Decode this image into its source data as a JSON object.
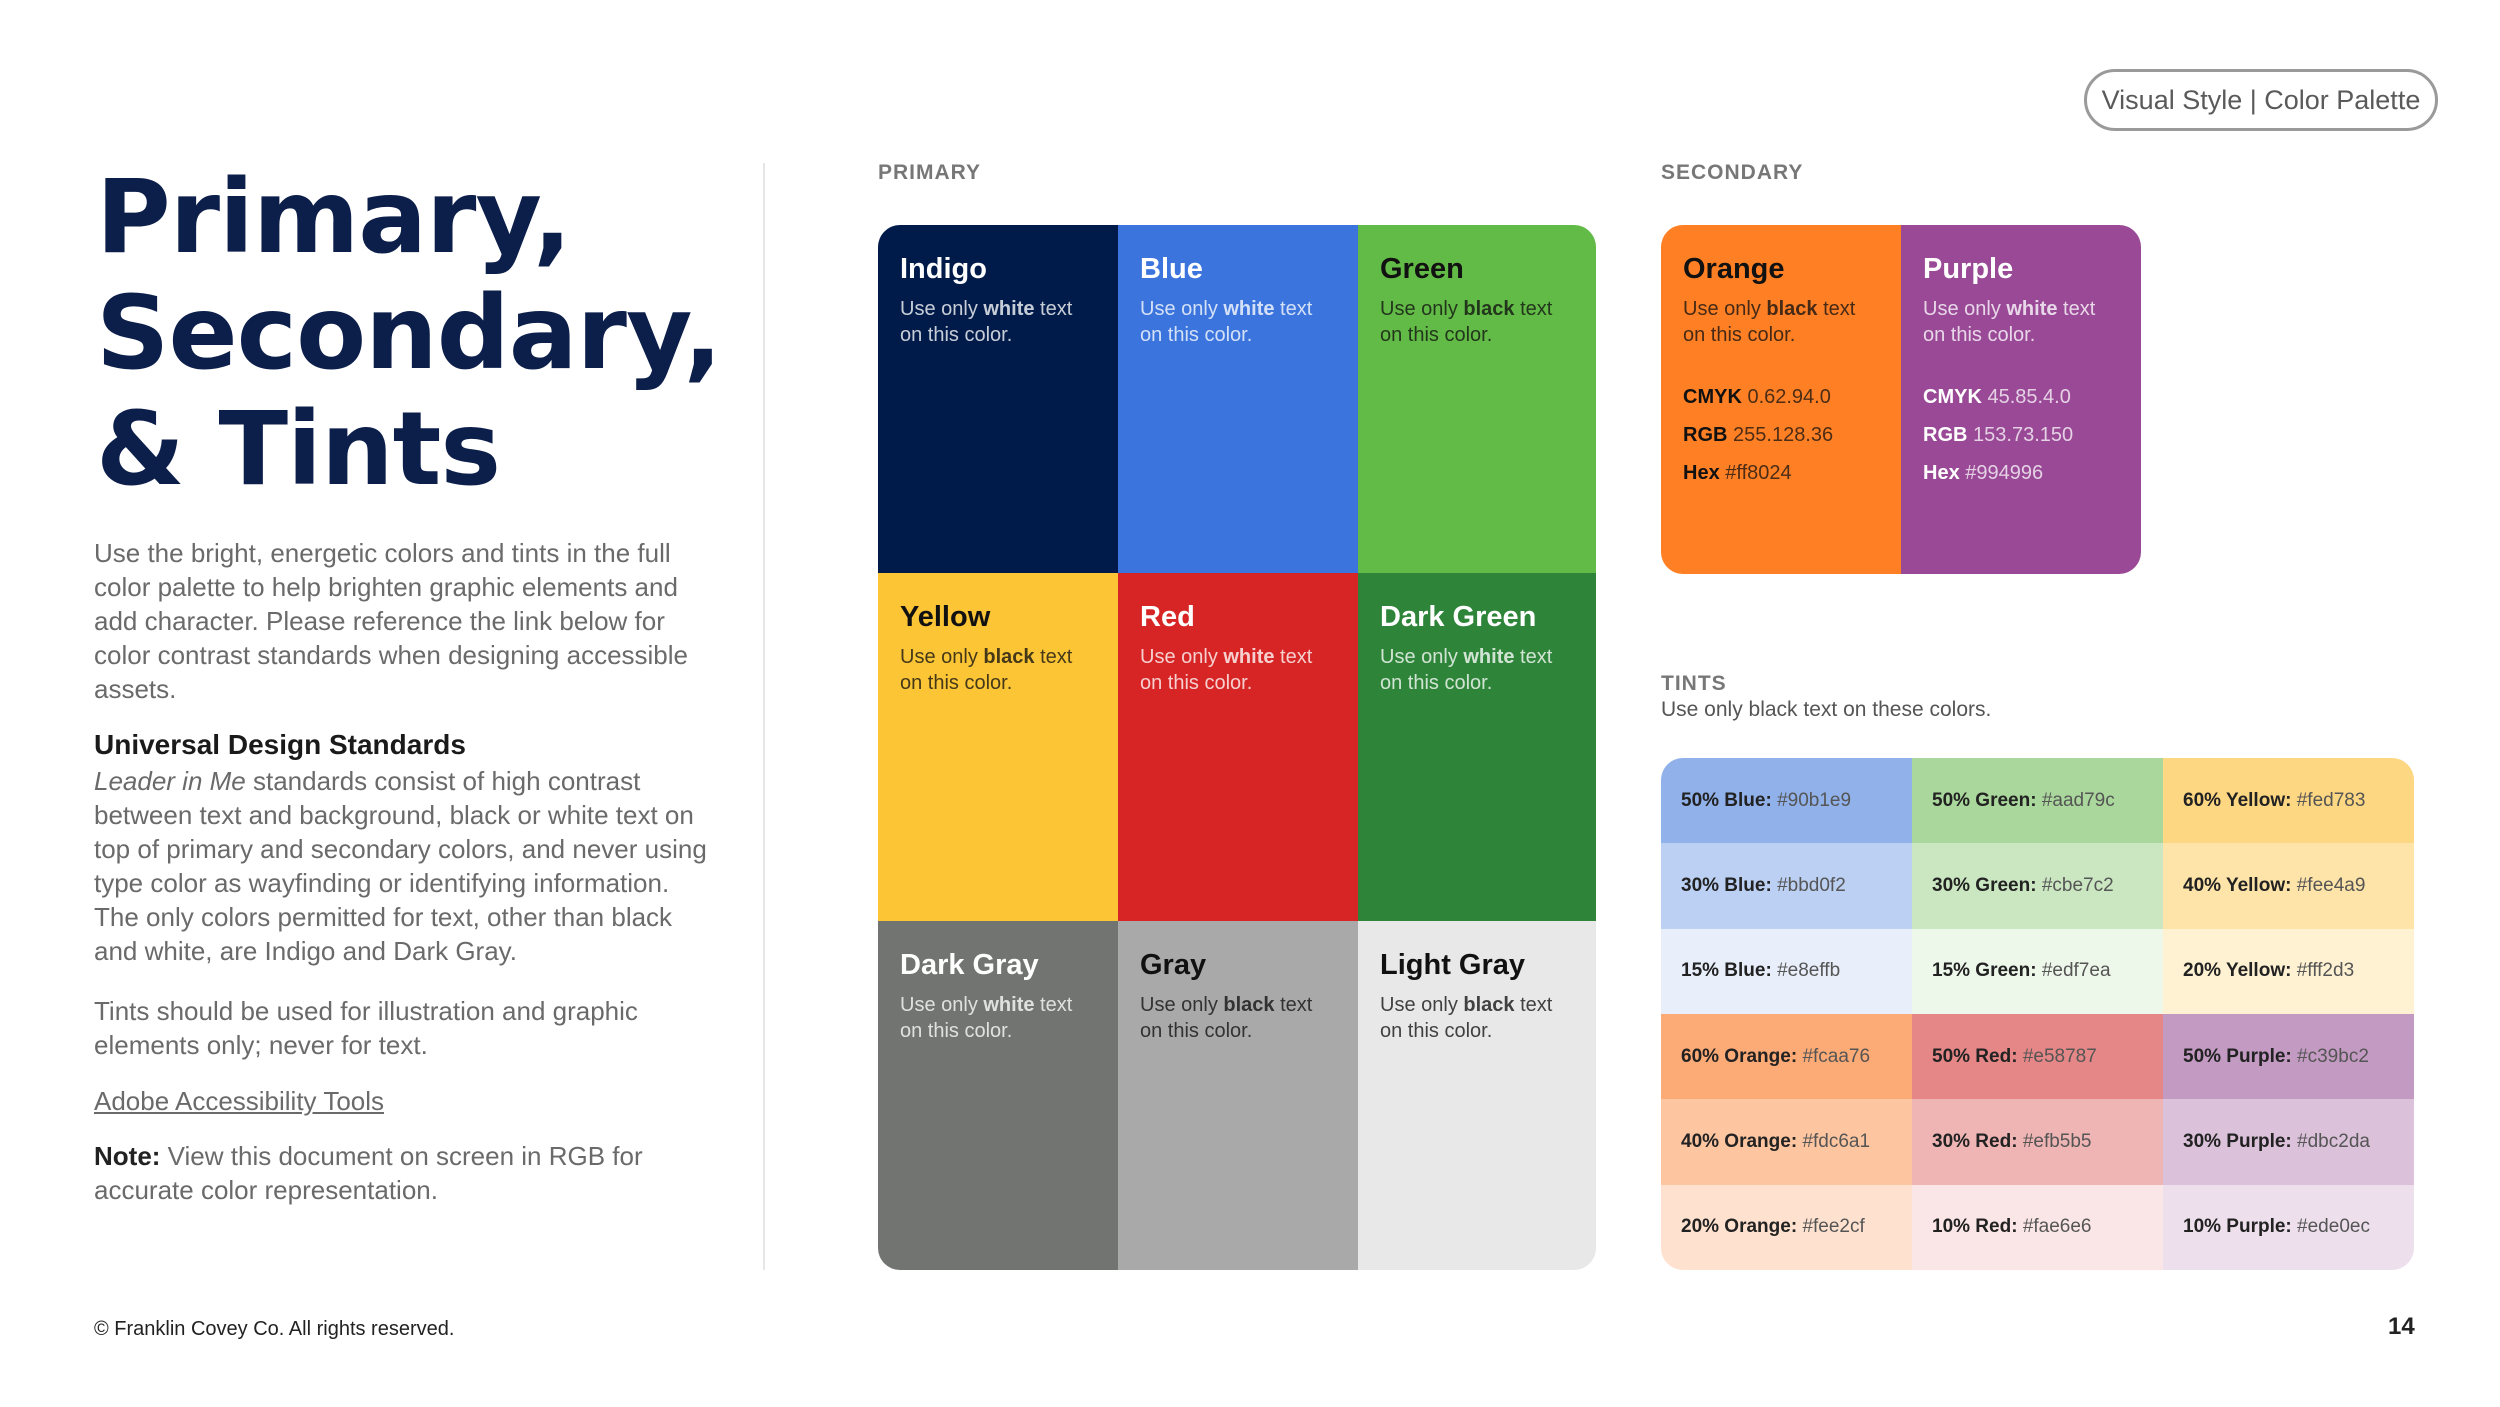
{
  "header": {
    "tag": "Visual Style | Color Palette"
  },
  "title": {
    "lines": [
      "Primary,",
      "Secondary,",
      "& Tints"
    ]
  },
  "intro": "Use the bright, energetic colors and tints in the full color palette to help brighten graphic elements and add character. Please reference the link below for color contrast standards when designing accessible assets.",
  "uds": {
    "heading": "Universal Design Standards",
    "lead_italic": "Leader in Me",
    "body": " standards consist of high contrast between text and background, black or white text on top of primary and secondary colors, and never using type color as wayfinding or identifying information. The only colors permitted for text, other than black and white, are Indigo and Dark Gray."
  },
  "tints_note": "Tints should be used for illustration and graphic elements only; never for text.",
  "link": "Adobe Accessibility Tools",
  "note": {
    "label": "Note:",
    "body": " View this document on screen in RGB for accurate color representation."
  },
  "labels": {
    "primary": "PRIMARY",
    "secondary": "SECONDARY",
    "tints": "TINTS",
    "tints_sub": "Use only black text on these colors."
  },
  "usage": {
    "pre": "Use only ",
    "white": "white",
    "black": "black",
    "post": " text",
    "line2": "on this color."
  },
  "spec_labels": {
    "cmyk": "CMYK",
    "rgb": "RGB",
    "hex": "Hex"
  },
  "primary": [
    {
      "name": "Indigo",
      "text": "white",
      "bg": "#001b4a"
    },
    {
      "name": "Blue",
      "text": "white",
      "bg": "#3a74dc"
    },
    {
      "name": "Green",
      "text": "black",
      "bg": "#62bb46"
    },
    {
      "name": "Yellow",
      "text": "black",
      "bg": "#fcc535"
    },
    {
      "name": "Red",
      "text": "white",
      "bg": "#d72424"
    },
    {
      "name": "Dark Green",
      "text": "white",
      "bg": "#2e853a"
    },
    {
      "name": "Dark Gray",
      "text": "white",
      "bg": "#727472"
    },
    {
      "name": "Gray",
      "text": "black",
      "bg": "#a9a9a9"
    },
    {
      "name": "Light Gray",
      "text": "black",
      "bg": "#e8e8e8"
    }
  ],
  "secondary": [
    {
      "name": "Orange",
      "text": "black",
      "bg": "#ff8024",
      "cmyk": "0.62.94.0",
      "rgb": "255.128.36",
      "hex": "#ff8024"
    },
    {
      "name": "Purple",
      "text": "white",
      "bg": "#994996",
      "cmyk": "45.85.4.0",
      "rgb": "153.73.150",
      "hex": "#994996"
    }
  ],
  "tints": [
    {
      "label": "50% Blue:",
      "hex": "#90b1e9"
    },
    {
      "label": "50% Green:",
      "hex": "#aad79c"
    },
    {
      "label": "60% Yellow:",
      "hex": "#fed783"
    },
    {
      "label": "30% Blue:",
      "hex": "#bbd0f2"
    },
    {
      "label": "30% Green:",
      "hex": "#cbe7c2"
    },
    {
      "label": "40% Yellow:",
      "hex": "#fee4a9"
    },
    {
      "label": "15% Blue:",
      "hex": "#e8effb"
    },
    {
      "label": "15% Green:",
      "hex": "#edf7ea"
    },
    {
      "label": "20% Yellow:",
      "hex": "#fff2d3"
    },
    {
      "label": "60% Orange:",
      "hex": "#fcaa76"
    },
    {
      "label": "50% Red:",
      "hex": "#e58787"
    },
    {
      "label": "50% Purple:",
      "hex": "#c39bc2"
    },
    {
      "label": "40% Orange:",
      "hex": "#fdc6a1"
    },
    {
      "label": "30% Red:",
      "hex": "#efb5b5"
    },
    {
      "label": "30% Purple:",
      "hex": "#dbc2da"
    },
    {
      "label": "20% Orange:",
      "hex": "#fee2cf"
    },
    {
      "label": "10% Red:",
      "hex": "#fae6e6"
    },
    {
      "label": "10% Purple:",
      "hex": "#ede0ec"
    }
  ],
  "footer": {
    "copyright": "© Franklin Covey Co. All rights reserved.",
    "page": "14"
  }
}
